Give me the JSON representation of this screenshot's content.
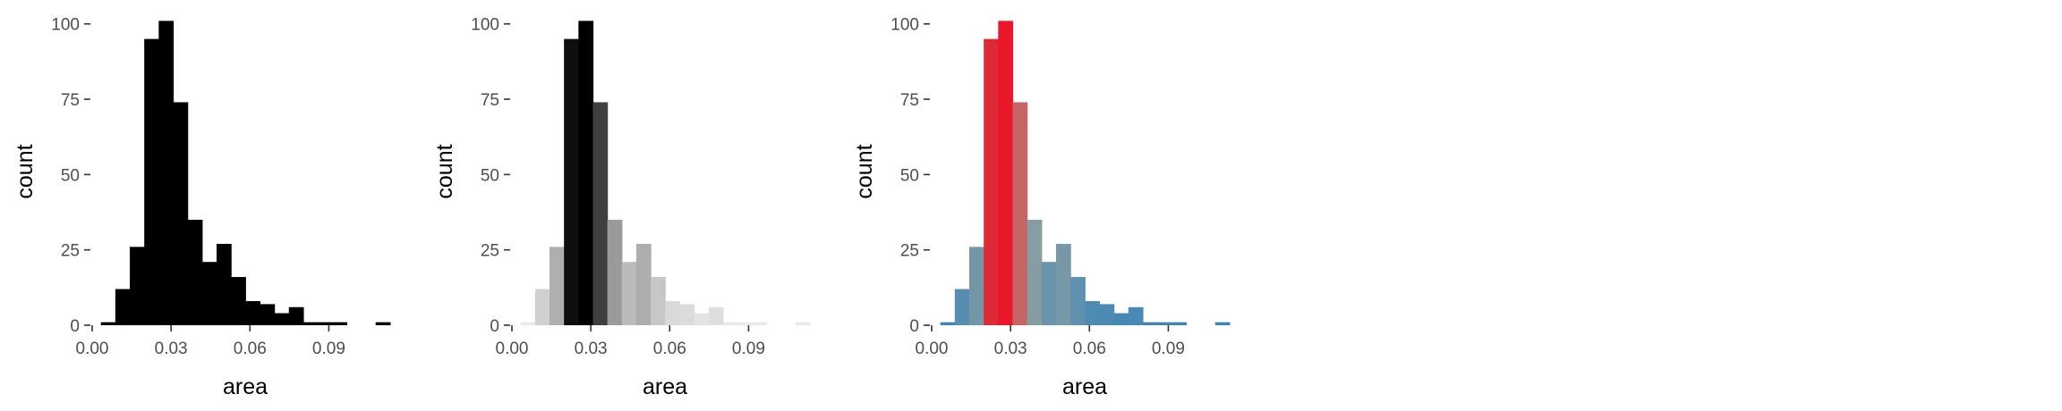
{
  "chart_data": [
    {
      "type": "bar",
      "xlabel": "area",
      "ylabel": "count",
      "fill_mode": "solid",
      "fill_color": "#000000",
      "bin_width": 0.0055,
      "bin_starts": [
        0.0033,
        0.0088,
        0.0143,
        0.0198,
        0.0253,
        0.0308,
        0.0363,
        0.0418,
        0.0473,
        0.0528,
        0.0583,
        0.0638,
        0.0693,
        0.0748,
        0.0803,
        0.0858,
        0.0913,
        0.0968,
        0.1023,
        0.1078
      ],
      "values": [
        1,
        12,
        26,
        95,
        101,
        74,
        35,
        21,
        27,
        16,
        8,
        7,
        4,
        6,
        1,
        1,
        1,
        0,
        0,
        1
      ],
      "xlim": [
        0.0,
        0.113
      ],
      "ylim": [
        0,
        102
      ],
      "xticks": [
        0.0,
        0.03,
        0.06,
        0.09
      ],
      "xtick_labels": [
        "0.00",
        "0.03",
        "0.06",
        "0.09"
      ],
      "yticks": [
        0,
        25,
        50,
        75,
        100
      ],
      "ytick_labels": [
        "0",
        "25",
        "50",
        "75",
        "100"
      ]
    },
    {
      "type": "bar",
      "xlabel": "area",
      "ylabel": "count",
      "fill_mode": "gradient",
      "gradient": [
        "#ececec",
        "#000000"
      ],
      "bin_width": 0.0055,
      "bin_starts": [
        0.0033,
        0.0088,
        0.0143,
        0.0198,
        0.0253,
        0.0308,
        0.0363,
        0.0418,
        0.0473,
        0.0528,
        0.0583,
        0.0638,
        0.0693,
        0.0748,
        0.0803,
        0.0858,
        0.0913,
        0.0968,
        0.1023,
        0.1078
      ],
      "values": [
        1,
        12,
        26,
        95,
        101,
        74,
        35,
        21,
        27,
        16,
        8,
        7,
        4,
        6,
        1,
        1,
        1,
        0,
        0,
        1
      ],
      "xlim": [
        0.0,
        0.113
      ],
      "ylim": [
        0,
        102
      ],
      "xticks": [
        0.0,
        0.03,
        0.06,
        0.09
      ],
      "xtick_labels": [
        "0.00",
        "0.03",
        "0.06",
        "0.09"
      ],
      "yticks": [
        0,
        25,
        50,
        75,
        100
      ],
      "ytick_labels": [
        "0",
        "25",
        "50",
        "75",
        "100"
      ]
    },
    {
      "type": "bar",
      "xlabel": "area",
      "ylabel": "count",
      "fill_mode": "diverging",
      "gradient": [
        "#3d85b8",
        "#a8a898",
        "#e8182a"
      ],
      "bin_width": 0.0055,
      "bin_starts": [
        0.0033,
        0.0088,
        0.0143,
        0.0198,
        0.0253,
        0.0308,
        0.0363,
        0.0418,
        0.0473,
        0.0528,
        0.0583,
        0.0638,
        0.0693,
        0.0748,
        0.0803,
        0.0858,
        0.0913,
        0.0968,
        0.1023,
        0.1078
      ],
      "values": [
        1,
        12,
        26,
        95,
        101,
        74,
        35,
        21,
        27,
        16,
        8,
        7,
        4,
        6,
        1,
        1,
        1,
        0,
        0,
        1
      ],
      "xlim": [
        0.0,
        0.113
      ],
      "ylim": [
        0,
        102
      ],
      "xticks": [
        0.0,
        0.03,
        0.06,
        0.09
      ],
      "xtick_labels": [
        "0.00",
        "0.03",
        "0.06",
        "0.09"
      ],
      "yticks": [
        0,
        25,
        50,
        75,
        100
      ],
      "ytick_labels": [
        "0",
        "25",
        "50",
        "75",
        "100"
      ]
    }
  ]
}
